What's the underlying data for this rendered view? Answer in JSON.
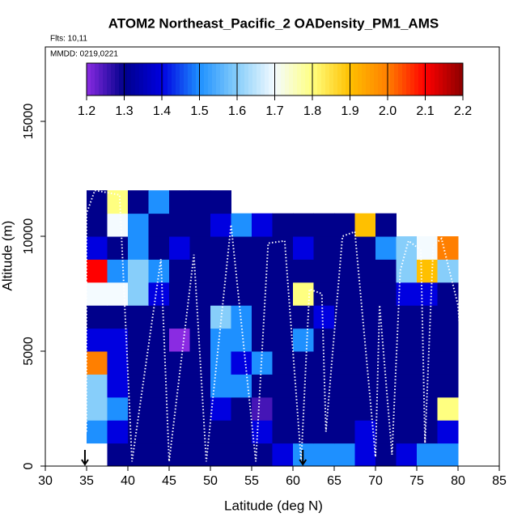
{
  "chart_data": {
    "type": "heatmap",
    "title": "ATOM2 Northeast_Pacific_2 OADensity_PM1_AMS",
    "subtitle": "Flts: 10,11",
    "annotation": "MMDD: 0219,0221",
    "x_label": "Latitude (deg N)",
    "y_label": "Altitude (m)",
    "xlim": [
      30,
      85
    ],
    "xticks": [
      30,
      35,
      40,
      45,
      50,
      55,
      60,
      65,
      70,
      75,
      80,
      85
    ],
    "ylim": [
      0,
      18240
    ],
    "yticks": [
      0,
      5000,
      10000,
      15000
    ],
    "xbins": [
      35,
      37.5,
      40,
      42.5,
      45,
      47.5,
      50,
      52.5,
      55,
      57.5,
      60,
      62.5,
      65,
      67.5,
      70,
      72.5,
      75,
      77.5,
      80
    ],
    "ybins": [
      0,
      1000,
      2000,
      3000,
      4000,
      5000,
      6000,
      7000,
      8000,
      9000,
      10000,
      11000,
      12000
    ],
    "z": [
      [
        null,
        1.3,
        1.3,
        1.3,
        1.3,
        1.3,
        1.3,
        1.3,
        1.3,
        1.4,
        1.5,
        1.5,
        1.5,
        1.4,
        1.3,
        1.4,
        1.5,
        1.5
      ],
      [
        1.5,
        1.4,
        1.3,
        1.3,
        1.3,
        1.3,
        1.3,
        1.3,
        1.4,
        1.3,
        1.3,
        1.3,
        1.3,
        1.4,
        1.3,
        1.3,
        1.3,
        1.4
      ],
      [
        1.6,
        1.5,
        1.3,
        1.3,
        1.3,
        1.3,
        1.4,
        1.3,
        1.25,
        1.3,
        1.3,
        1.3,
        1.3,
        1.3,
        1.3,
        1.3,
        1.3,
        1.8
      ],
      [
        1.6,
        1.4,
        1.3,
        1.3,
        1.3,
        1.3,
        1.5,
        1.5,
        1.3,
        1.3,
        1.3,
        1.3,
        1.3,
        1.3,
        1.3,
        1.3,
        1.3,
        1.3
      ],
      [
        2.0,
        1.4,
        1.3,
        1.3,
        1.3,
        1.3,
        1.5,
        1.4,
        1.5,
        1.3,
        1.3,
        1.3,
        1.3,
        1.3,
        1.3,
        1.3,
        1.3,
        1.3
      ],
      [
        1.4,
        1.4,
        1.3,
        1.3,
        1.2,
        1.3,
        1.5,
        1.5,
        1.3,
        1.3,
        1.5,
        1.3,
        1.3,
        1.3,
        1.3,
        1.3,
        1.3,
        1.3
      ],
      [
        1.3,
        1.3,
        1.3,
        1.3,
        1.3,
        1.3,
        1.6,
        1.5,
        1.3,
        1.3,
        1.3,
        1.4,
        1.3,
        1.3,
        1.3,
        1.3,
        1.3,
        1.3
      ],
      [
        1.7,
        1.7,
        1.6,
        1.4,
        1.3,
        1.3,
        1.3,
        1.3,
        1.3,
        1.3,
        1.8,
        1.3,
        1.3,
        1.3,
        1.3,
        1.4,
        1.4,
        1.3
      ],
      [
        2.1,
        1.5,
        1.6,
        1.5,
        1.3,
        1.3,
        1.3,
        1.3,
        1.3,
        1.3,
        1.3,
        1.3,
        1.3,
        1.3,
        1.3,
        1.6,
        1.9,
        1.6
      ],
      [
        1.4,
        1.3,
        1.5,
        1.3,
        1.4,
        1.3,
        1.3,
        1.3,
        1.3,
        1.3,
        1.4,
        1.3,
        1.3,
        1.3,
        1.5,
        1.6,
        1.7,
        2.0
      ],
      [
        1.3,
        1.7,
        1.5,
        1.3,
        1.3,
        1.3,
        1.4,
        1.5,
        1.4,
        1.3,
        1.3,
        1.3,
        1.3,
        1.9,
        1.3,
        null,
        null,
        null
      ],
      [
        1.3,
        1.8,
        1.3,
        1.5,
        1.3,
        1.3,
        1.3,
        null,
        null,
        null,
        null,
        null,
        null,
        null,
        null,
        null,
        null,
        null
      ]
    ],
    "zlim": [
      1.2,
      2.2
    ],
    "zticks": [
      1.2,
      1.3,
      1.4,
      1.5,
      1.6,
      1.7,
      1.8,
      1.9,
      {
        "value": 2,
        "label": "2.0"
      },
      2.1,
      2.2
    ],
    "colors": [
      "#8a2be2",
      "#00008b",
      "#0000e0",
      "#1e90ff",
      "#87cefa",
      "#f4fbff",
      "#ffff80",
      "#ffc000",
      "#ff7f00",
      "#ff0000",
      "#8b0000"
    ],
    "track": {
      "color": "#ffffff",
      "x": [
        35,
        35,
        36,
        39,
        40.5,
        44,
        45,
        48,
        49.5,
        52.5,
        55.5,
        57,
        59,
        61,
        62,
        63.5,
        64,
        66,
        67.5,
        70,
        70.5,
        72,
        73,
        74,
        75.5,
        76,
        77,
        78,
        80,
        80.5
      ],
      "y": [
        1500,
        11000,
        12000,
        11800,
        200,
        9000,
        200,
        9200,
        200,
        10500,
        200,
        9700,
        9800,
        200,
        7700,
        7500,
        1500,
        10000,
        10200,
        400,
        7000,
        500,
        8500,
        9800,
        9400,
        1000,
        9600,
        9900,
        7000,
        4500
      ]
    },
    "arrows": [
      34.8,
      61.2
    ]
  }
}
